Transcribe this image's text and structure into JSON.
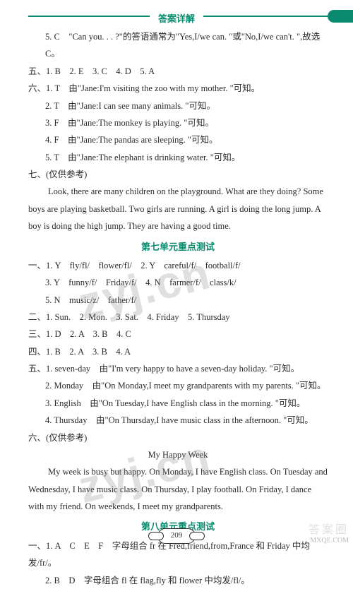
{
  "header": {
    "title": "答案详解"
  },
  "colors": {
    "accent": "#0a8a6f",
    "text": "#2a2a2a",
    "bg": "#ffffff",
    "wm": "rgba(140,140,140,0.28)"
  },
  "fonts": {
    "body_size": 12.5,
    "title_size": 13,
    "wm_size": 64
  },
  "watermark": "zyj.cn",
  "page_number": "209",
  "corner": {
    "l1": "答案圈",
    "l2": "MXQE.COM"
  },
  "lines": [
    {
      "cls": "indent1",
      "t": "5. C　\"Can you. . . ?\"的答语通常为\"Yes,I/we can. \"或\"No,I/we can't. \",故选 C。"
    },
    {
      "cls": "line",
      "t": "五、1. B　2. E　3. C　4. D　5. A"
    },
    {
      "cls": "line",
      "t": "六、1. T　由\"Jane:I'm visiting the zoo with my mother. \"可知。"
    },
    {
      "cls": "indent1",
      "t": "2. T　由\"Jane:I can see many animals. \"可知。"
    },
    {
      "cls": "indent1",
      "t": "3. F　由\"Jane:The monkey is playing. \"可知。"
    },
    {
      "cls": "indent1",
      "t": "4. F　由\"Jane:The pandas are sleeping. \"可知。"
    },
    {
      "cls": "indent1",
      "t": "5. T　由\"Jane:The elephant is drinking water. \"可知。"
    },
    {
      "cls": "line",
      "t": "七、(仅供参考)"
    },
    {
      "cls": "para",
      "t": "Look, there are many children on the playground. What are they doing? Some boys are playing basketball. Two girls are running. A girl is doing the long jump. A boy is doing the high jump. They are having a good time."
    }
  ],
  "section7": {
    "title": "第七单元重点测试",
    "lines": [
      {
        "cls": "line",
        "t": "一、1. Y　fly/fl/　flower/fl/　2. Y　careful/f/　football/f/"
      },
      {
        "cls": "indent1",
        "t": "3. Y　funny/f/　Friday/f/　4. N　farmer/f/　class/k/"
      },
      {
        "cls": "indent1",
        "t": "5. N　music/z/　father/f/"
      },
      {
        "cls": "line",
        "t": "二、1. Sun.　2. Mon.　3. Sat.　4. Friday　5. Thursday"
      },
      {
        "cls": "line",
        "t": "三、1. D　2. A　3. B　4. C"
      },
      {
        "cls": "line",
        "t": "四、1. B　2. A　3. B　4. A"
      },
      {
        "cls": "line",
        "t": "五、1. seven-day　由\"I'm very happy to have a seven-day holiday. \"可知。"
      },
      {
        "cls": "indent1",
        "t": "2. Monday　由\"On Monday,I meet my grandparents with my parents. \"可知。"
      },
      {
        "cls": "indent1",
        "t": "3. English　由\"On Tuesday,I have English class in the morning. \"可知。"
      },
      {
        "cls": "indent1",
        "t": "4. Thursday　由\"On Thursday,I have music class in the afternoon. \"可知。"
      },
      {
        "cls": "line",
        "t": "六、(仅供参考)"
      },
      {
        "cls": "center",
        "t": "My Happy Week"
      },
      {
        "cls": "para",
        "t": "My week is busy but happy. On Monday, I have English class. On Tuesday and Wednesday, I have music class. On Thursday, I play football. On Friday, I dance with my friend. On weekends, I meet my grandparents."
      }
    ]
  },
  "section8": {
    "title": "第八单元重点测试",
    "lines": [
      {
        "cls": "line",
        "t": "一、1. A　C　E　F　字母组合 fr 在 Fred,friend,from,France 和 Friday 中均发/fr/。"
      },
      {
        "cls": "indent1",
        "t": "2. B　D　字母组合 fl 在 flag,fly 和 flower 中均发/fl/。"
      }
    ]
  }
}
